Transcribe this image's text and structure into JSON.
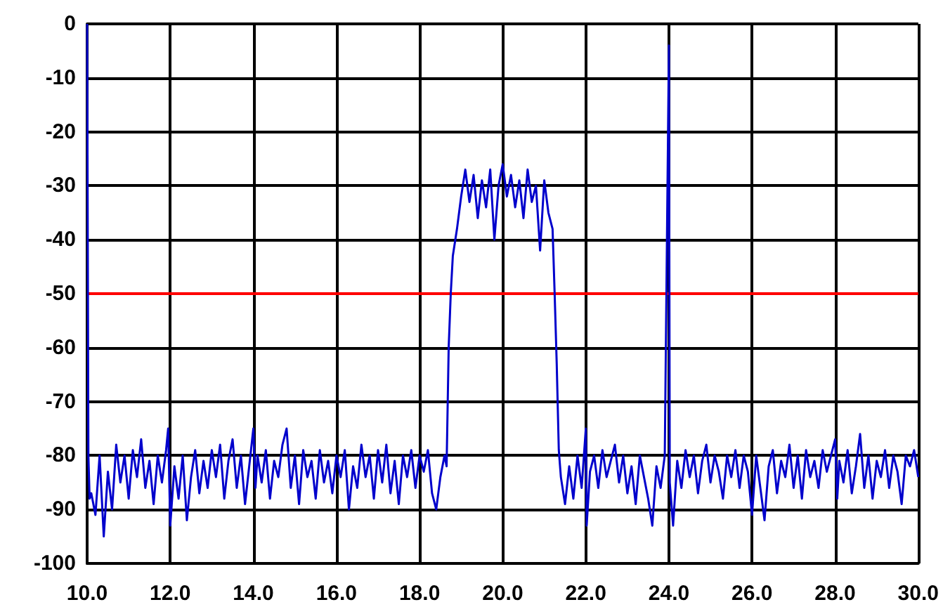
{
  "chart_data": {
    "type": "line",
    "x": [
      10.0,
      10.03,
      10.06,
      10.1,
      10.2,
      10.3,
      10.4,
      10.5,
      10.6,
      10.7,
      10.8,
      10.9,
      11.0,
      11.1,
      11.2,
      11.3,
      11.4,
      11.5,
      11.6,
      11.7,
      11.8,
      11.9,
      11.95,
      12.0,
      12.1,
      12.2,
      12.3,
      12.4,
      12.5,
      12.6,
      12.7,
      12.8,
      12.9,
      13.0,
      13.1,
      13.2,
      13.3,
      13.4,
      13.5,
      13.6,
      13.7,
      13.8,
      13.9,
      14.0,
      14.05,
      14.1,
      14.2,
      14.3,
      14.4,
      14.5,
      14.6,
      14.7,
      14.8,
      14.9,
      15.0,
      15.1,
      15.2,
      15.3,
      15.4,
      15.5,
      15.6,
      15.7,
      15.8,
      15.9,
      16.0,
      16.1,
      16.2,
      16.3,
      16.4,
      16.5,
      16.6,
      16.7,
      16.8,
      16.9,
      17.0,
      17.1,
      17.2,
      17.3,
      17.4,
      17.5,
      17.6,
      17.7,
      17.8,
      17.9,
      18.0,
      18.1,
      18.2,
      18.3,
      18.4,
      18.5,
      18.6,
      18.65,
      18.7,
      18.75,
      18.8,
      18.9,
      19.0,
      19.1,
      19.2,
      19.3,
      19.4,
      19.5,
      19.6,
      19.7,
      19.8,
      19.9,
      20.0,
      20.1,
      20.2,
      20.3,
      20.4,
      20.5,
      20.6,
      20.7,
      20.8,
      20.9,
      21.0,
      21.1,
      21.2,
      21.25,
      21.3,
      21.35,
      21.4,
      21.5,
      21.6,
      21.7,
      21.8,
      21.9,
      22.0,
      22.02,
      22.1,
      22.2,
      22.3,
      22.4,
      22.5,
      22.6,
      22.7,
      22.8,
      22.9,
      23.0,
      23.1,
      23.2,
      23.3,
      23.4,
      23.5,
      23.6,
      23.7,
      23.8,
      23.9,
      24.0,
      24.02,
      24.1,
      24.2,
      24.3,
      24.4,
      24.5,
      24.6,
      24.7,
      24.8,
      24.9,
      25.0,
      25.1,
      25.2,
      25.3,
      25.4,
      25.5,
      25.6,
      25.7,
      25.8,
      25.9,
      26.0,
      26.1,
      26.2,
      26.3,
      26.4,
      26.5,
      26.6,
      26.7,
      26.8,
      26.9,
      27.0,
      27.1,
      27.2,
      27.3,
      27.4,
      27.5,
      27.6,
      27.7,
      27.8,
      27.9,
      28.0,
      28.05,
      28.1,
      28.2,
      28.3,
      28.4,
      28.5,
      28.6,
      28.7,
      28.8,
      28.9,
      29.0,
      29.1,
      29.2,
      29.3,
      29.4,
      29.5,
      29.6,
      29.7,
      29.8,
      29.9,
      30.0
    ],
    "values": [
      0,
      -80,
      -88,
      -87,
      -91,
      -80,
      -95,
      -83,
      -90,
      -78,
      -85,
      -80,
      -88,
      -79,
      -84,
      -77,
      -86,
      -81,
      -89,
      -80,
      -85,
      -79,
      -75,
      -93,
      -82,
      -88,
      -80,
      -92,
      -84,
      -79,
      -87,
      -81,
      -86,
      -79,
      -84,
      -78,
      -88,
      -81,
      -77,
      -86,
      -80,
      -89,
      -82,
      -75,
      -86,
      -80,
      -85,
      -79,
      -88,
      -81,
      -84,
      -78,
      -75,
      -86,
      -80,
      -89,
      -79,
      -84,
      -81,
      -88,
      -79,
      -85,
      -81,
      -87,
      -80,
      -84,
      -79,
      -90,
      -82,
      -86,
      -78,
      -84,
      -80,
      -88,
      -79,
      -85,
      -78,
      -87,
      -81,
      -89,
      -80,
      -84,
      -79,
      -86,
      -80,
      -83,
      -79,
      -87,
      -90,
      -84,
      -80,
      -82,
      -60,
      -50,
      -43,
      -38,
      -32,
      -27,
      -33,
      -28,
      -36,
      -29,
      -34,
      -27,
      -40,
      -30,
      -26,
      -32,
      -28,
      -34,
      -29,
      -36,
      -27,
      -33,
      -30,
      -42,
      -29,
      -35,
      -38,
      -50,
      -63,
      -79,
      -84,
      -89,
      -82,
      -88,
      -80,
      -86,
      -75,
      -93,
      -83,
      -80,
      -86,
      -79,
      -84,
      -81,
      -78,
      -85,
      -80,
      -87,
      -82,
      -89,
      -80,
      -84,
      -88,
      -93,
      -82,
      -86,
      -80,
      -4,
      -85,
      -93,
      -81,
      -86,
      -79,
      -84,
      -80,
      -87,
      -81,
      -78,
      -85,
      -80,
      -83,
      -88,
      -80,
      -84,
      -79,
      -86,
      -80,
      -83,
      -91,
      -80,
      -86,
      -92,
      -82,
      -79,
      -87,
      -81,
      -84,
      -78,
      -86,
      -80,
      -88,
      -79,
      -84,
      -81,
      -86,
      -79,
      -83,
      -80,
      -77,
      -88,
      -81,
      -85,
      -79,
      -87,
      -82,
      -76,
      -86,
      -80,
      -88,
      -81,
      -84,
      -79,
      -86,
      -80,
      -83,
      -89,
      -80,
      -82,
      -79,
      -84
    ],
    "color": "#0000cc",
    "xlim": [
      10,
      30
    ],
    "xticks": [
      {
        "value": 10,
        "label": "10.0"
      },
      {
        "value": 12,
        "label": "12.0"
      },
      {
        "value": 14,
        "label": "14.0"
      },
      {
        "value": 16,
        "label": "16.0"
      },
      {
        "value": 18,
        "label": "18.0"
      },
      {
        "value": 20,
        "label": "20.0"
      },
      {
        "value": 22,
        "label": "22.0"
      },
      {
        "value": 24,
        "label": "24.0"
      },
      {
        "value": 26,
        "label": "26.0"
      },
      {
        "value": 28,
        "label": "28.0"
      },
      {
        "value": 30,
        "label": "30.0"
      }
    ],
    "ylim": [
      -100,
      0
    ],
    "yticks": [
      0,
      -10,
      -20,
      -30,
      -40,
      -50,
      -60,
      -70,
      -80,
      -90,
      -100
    ],
    "grid": true,
    "ref_lines": [
      {
        "axis": "y",
        "value": -50,
        "color": "#ff0000",
        "line_style": "solid"
      }
    ]
  }
}
